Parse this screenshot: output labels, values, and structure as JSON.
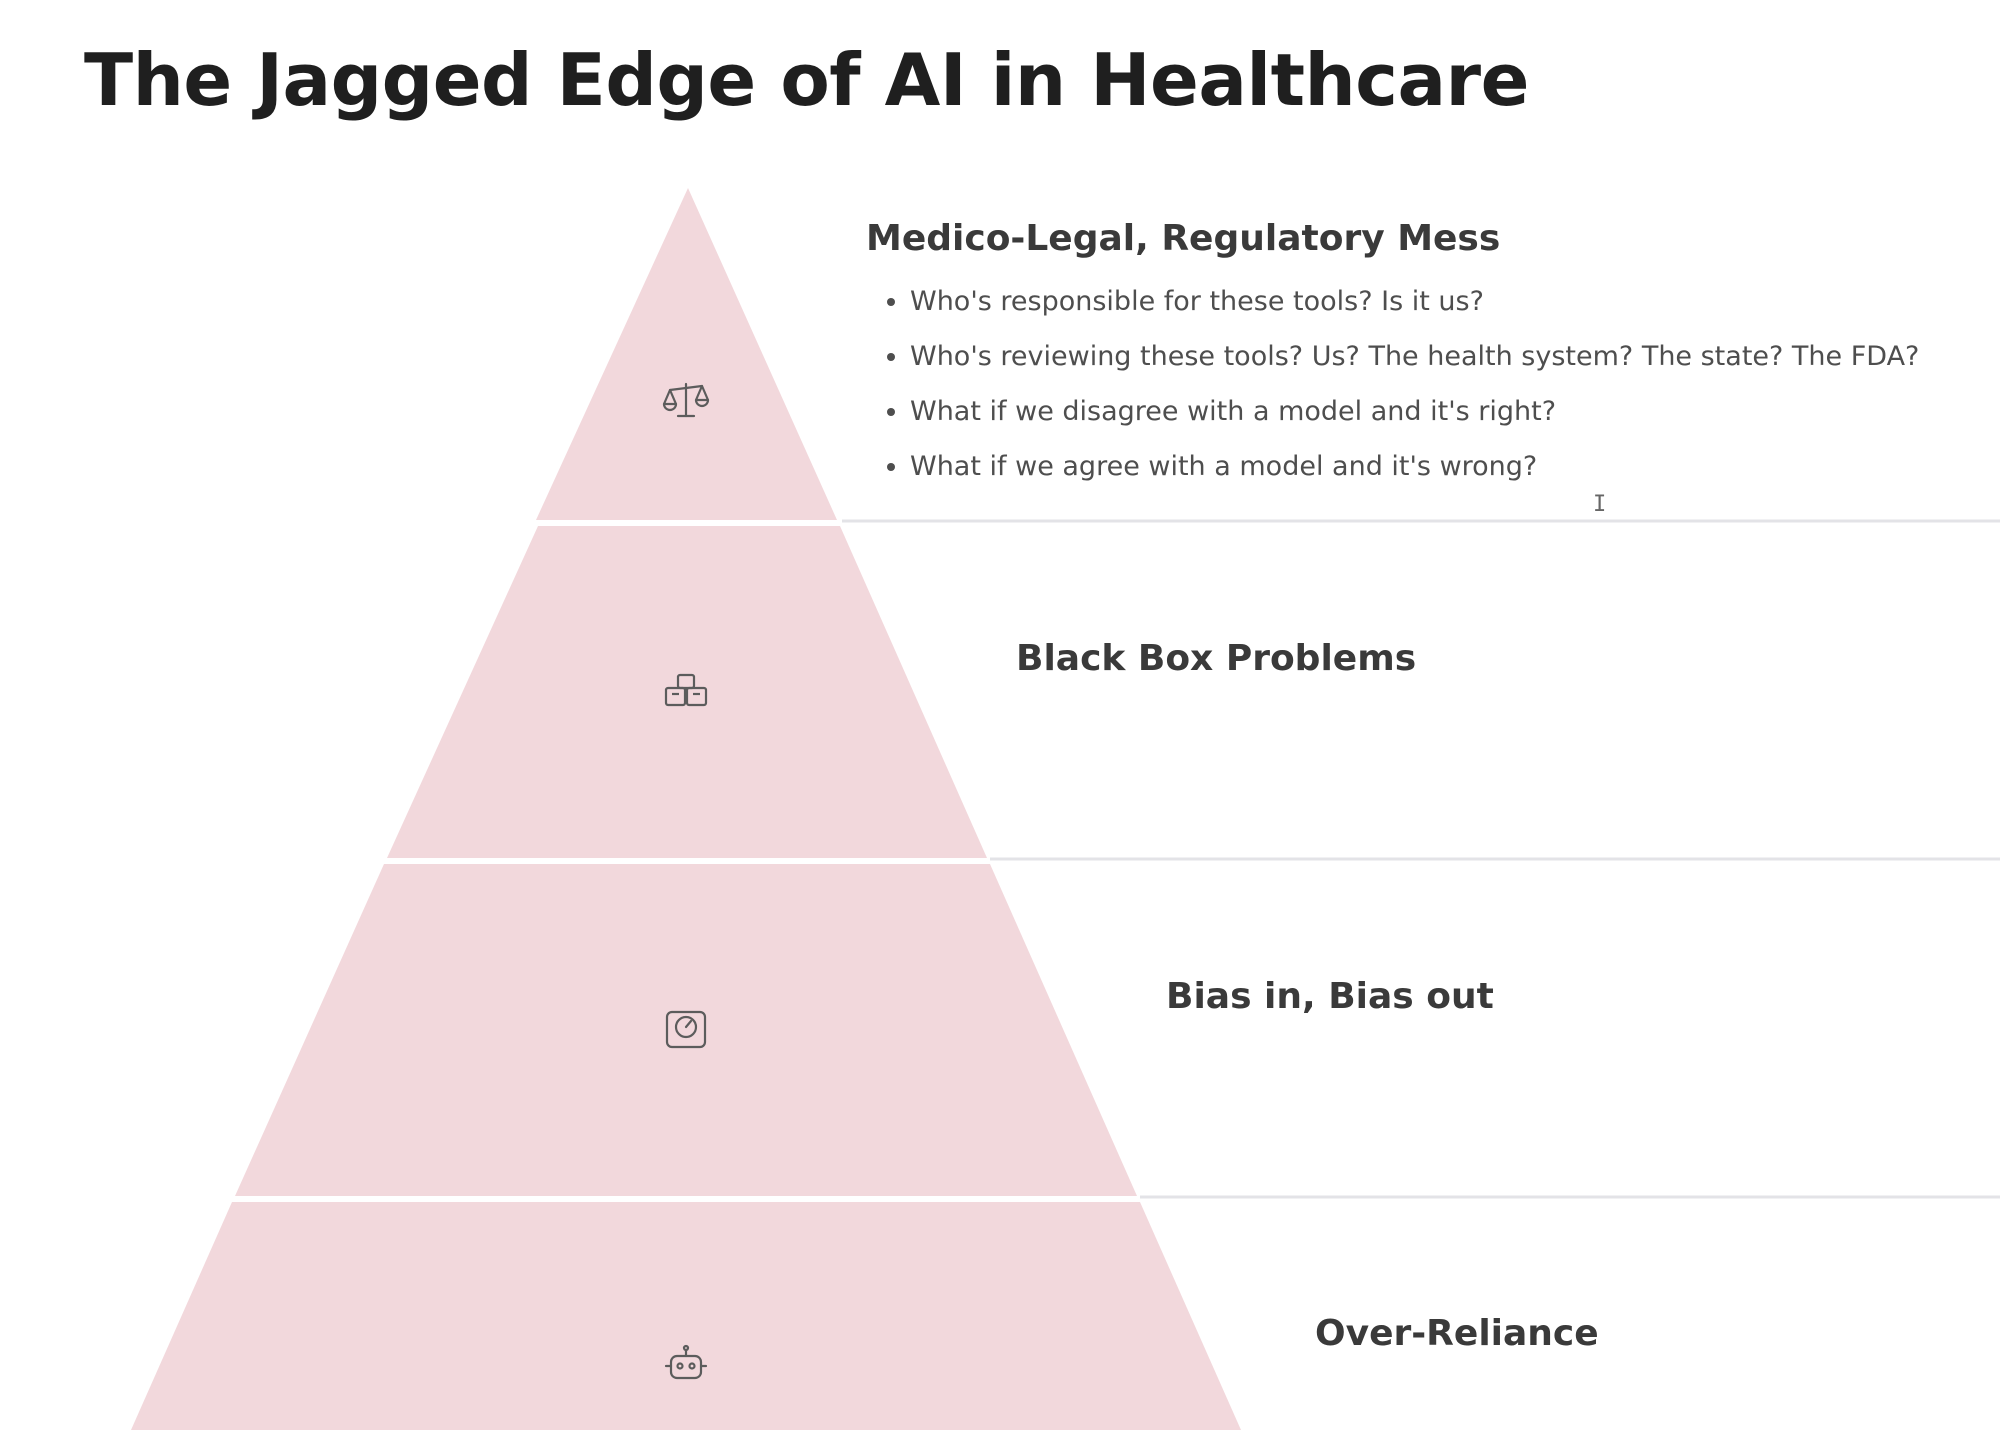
{
  "slide": {
    "title": "The Jagged Edge of AI in Healthcare"
  },
  "colors": {
    "tier_fill": "#f2d8dc",
    "separator": "#e3e3e7",
    "icon_stroke": "#5c5c5c"
  },
  "tiers": [
    {
      "title": "Medico-Legal, Regulatory Mess",
      "icon": "scales-icon",
      "bullets": [
        "Who's responsible for these tools? Is it us?",
        "Who's reviewing these tools? Us? The health system? The state? The FDA?",
        "What if we disagree with a model and it's right?",
        "What if we agree with a model and it's wrong?"
      ]
    },
    {
      "title": "Black Box Problems",
      "icon": "boxes-icon"
    },
    {
      "title": "Bias in, Bias out",
      "icon": "scale-device-icon"
    },
    {
      "title": "Over-Reliance",
      "icon": "robot-icon"
    }
  ],
  "cursor": "I"
}
